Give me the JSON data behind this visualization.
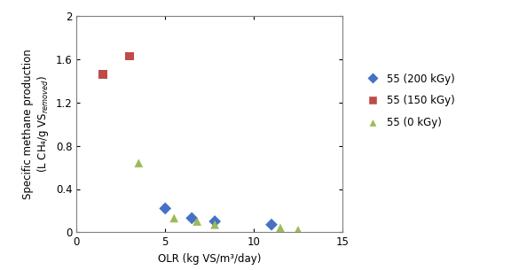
{
  "series": [
    {
      "label": "55 (200 kGy)",
      "color": "#4472C4",
      "marker": "D",
      "x": [
        5.0,
        6.5,
        7.8,
        11.0
      ],
      "y": [
        0.22,
        0.13,
        0.1,
        0.07
      ]
    },
    {
      "label": "55 (150 kGy)",
      "color": "#BE4B48",
      "marker": "s",
      "x": [
        1.5,
        3.0
      ],
      "y": [
        1.46,
        1.63
      ]
    },
    {
      "label": "55 (0 kGy)",
      "color": "#9BBB59",
      "marker": "^",
      "x": [
        3.5,
        5.5,
        6.8,
        7.8,
        11.5,
        12.5
      ],
      "y": [
        0.64,
        0.13,
        0.1,
        0.07,
        0.04,
        0.02
      ]
    }
  ],
  "xlabel": "OLR (kg VS/m³/day)",
  "ylabel_line1": "Specific methane production",
  "ylabel_line2": "(L CH₄/g VS",
  "ylabel_subscript": "removed",
  "ylabel_end": ")",
  "xlim": [
    0,
    15
  ],
  "ylim": [
    0,
    2
  ],
  "xticks": [
    0,
    5,
    10,
    15
  ],
  "yticks": [
    0,
    0.4,
    0.8,
    1.2,
    1.6,
    2.0
  ],
  "marker_size": 7,
  "figsize": [
    5.76,
    3.05
  ],
  "dpi": 100,
  "background": "#ffffff",
  "legend_fontsize": 8.5,
  "axis_fontsize": 8.5,
  "tick_fontsize": 8.5
}
